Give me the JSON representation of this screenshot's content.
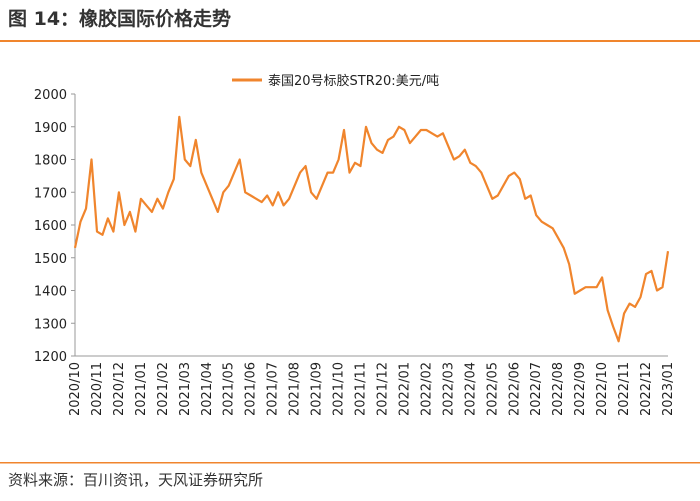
{
  "title": "图 14：橡胶国际价格走势",
  "source": "资料来源：百川资讯，天风证券研究所",
  "chart_data": {
    "type": "line",
    "xticks": [
      "2020/10",
      "2020/11",
      "2020/12",
      "2021/01",
      "2021/02",
      "2021/03",
      "2021/04",
      "2021/05",
      "2021/06",
      "2021/07",
      "2021/08",
      "2021/09",
      "2021/10",
      "2021/11",
      "2021/12",
      "2022/01",
      "2022/02",
      "2022/03",
      "2022/04",
      "2022/05",
      "2022/06",
      "2022/07",
      "2022/08",
      "2022/09",
      "2022/10",
      "2022/11",
      "2022/12",
      "2023/01"
    ],
    "series": [
      {
        "name": "泰国20号标胶STR20:美元/吨",
        "color": "#f0852d",
        "values": [
          1530,
          1610,
          1650,
          1800,
          1580,
          1570,
          1620,
          1580,
          1700,
          1600,
          1640,
          1580,
          1680,
          1660,
          1640,
          1680,
          1650,
          1700,
          1740,
          1930,
          1800,
          1780,
          1860,
          1760,
          1720,
          1680,
          1640,
          1700,
          1720,
          1760,
          1800,
          1700,
          1690,
          1680,
          1670,
          1690,
          1660,
          1700,
          1660,
          1680,
          1720,
          1760,
          1780,
          1700,
          1680,
          1720,
          1760,
          1760,
          1800,
          1890,
          1760,
          1790,
          1780,
          1900,
          1850,
          1830,
          1820,
          1860,
          1870,
          1900,
          1890,
          1850,
          1870,
          1890,
          1890,
          1880,
          1870,
          1880,
          1840,
          1800,
          1810,
          1830,
          1790,
          1780,
          1760,
          1720,
          1680,
          1690,
          1720,
          1750,
          1760,
          1740,
          1680,
          1690,
          1630,
          1610,
          1600,
          1590,
          1560,
          1530,
          1480,
          1390,
          1400,
          1410,
          1410,
          1410,
          1440,
          1340,
          1290,
          1245,
          1330,
          1360,
          1350,
          1380,
          1450,
          1460,
          1400,
          1410,
          1520
        ]
      }
    ],
    "ylim": [
      1200,
      2000
    ],
    "yticks": [
      1200,
      1300,
      1400,
      1500,
      1600,
      1700,
      1800,
      1900,
      2000
    ],
    "legend": "top"
  }
}
